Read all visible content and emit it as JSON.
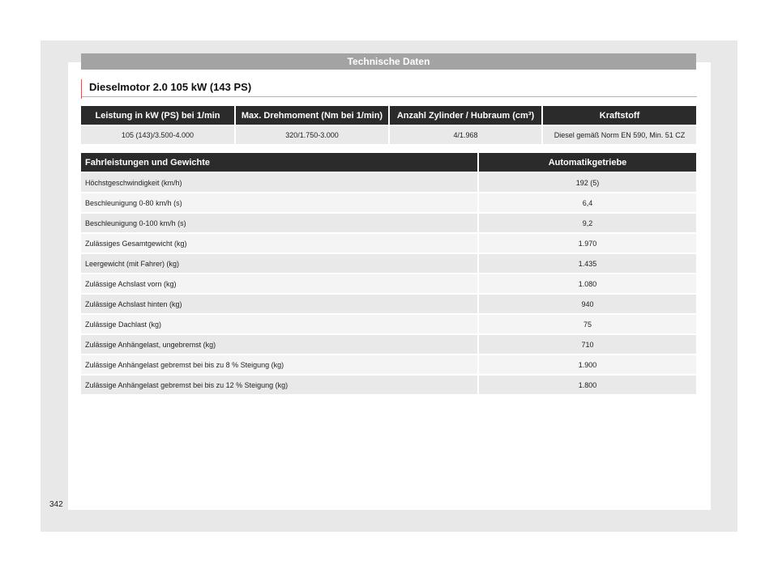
{
  "header": {
    "section_title": "Technische Daten"
  },
  "title": "Dieselmotor 2.0 105 kW (143 PS)",
  "engine_table": {
    "headers": [
      "Leistung in kW (PS) bei 1/min",
      "Max. Drehmoment (Nm bei 1/min)",
      "Anzahl Zylinder / Hubraum (cm³)",
      "Kraftstoff"
    ],
    "row": [
      "105 (143)/3.500-4.000",
      "320/1.750-3.000",
      "4/1.968",
      "Diesel gemäß Norm EN 590, Min. 51 CZ"
    ]
  },
  "performance_table": {
    "headers": [
      "Fahrleistungen und Gewichte",
      "Automatikgetriebe"
    ],
    "rows": [
      [
        "Höchstgeschwindigkeit (km/h)",
        "192 (5)"
      ],
      [
        "Beschleunigung 0-80 km/h (s)",
        "6,4"
      ],
      [
        "Beschleunigung 0-100 km/h (s)",
        "9,2"
      ],
      [
        "Zulässiges Gesamtgewicht (kg)",
        "1.970"
      ],
      [
        "Leergewicht (mit Fahrer) (kg)",
        "1.435"
      ],
      [
        "Zulässige Achslast vorn (kg)",
        "1.080"
      ],
      [
        "Zulässige Achslast hinten (kg)",
        "940"
      ],
      [
        "Zulässige Dachlast (kg)",
        "75"
      ],
      [
        "Zulässige Anhängelast, ungebremst (kg)",
        "710"
      ],
      [
        "Zulässige Anhängelast gebremst bei bis zu 8 % Steigung (kg)",
        "1.900"
      ],
      [
        "Zulässige Anhängelast gebremst bei bis zu 12 % Steigung (kg)",
        "1.800"
      ]
    ]
  },
  "page_number": "342",
  "colors": {
    "header_bar": "#a3a3a3",
    "table_header": "#2b2b2b",
    "title_accent": "#d05a5a"
  }
}
